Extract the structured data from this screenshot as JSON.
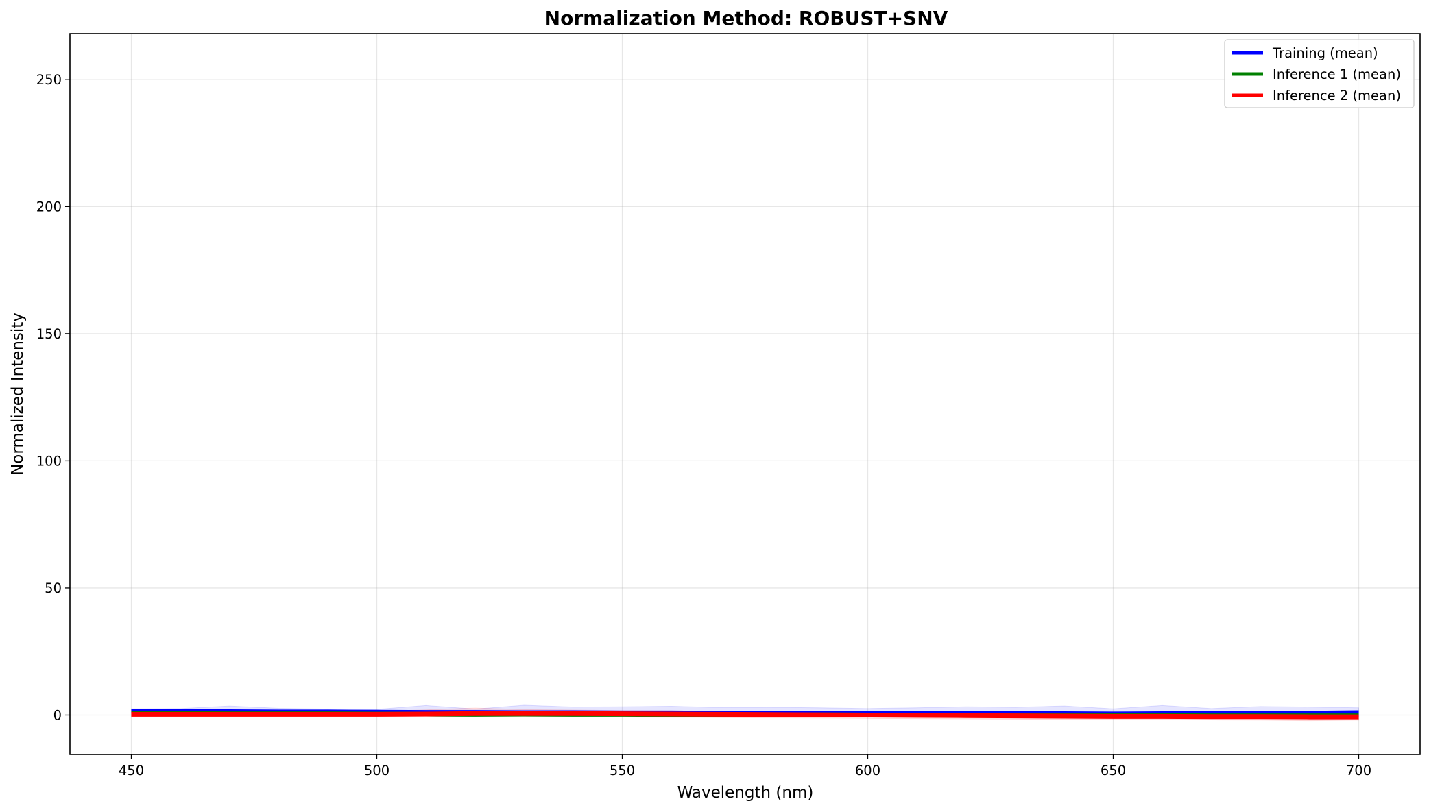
{
  "chart_data": {
    "type": "line",
    "title": "Normalization Method: ROBUST+SNV",
    "xlabel": "Wavelength (nm)",
    "ylabel": "Normalized Intensity",
    "xlim": [
      437.5,
      712.5
    ],
    "ylim": [
      -15.5,
      268
    ],
    "xticks": [
      450,
      500,
      550,
      600,
      650,
      700
    ],
    "yticks": [
      0,
      50,
      100,
      150,
      200,
      250
    ],
    "grid": true,
    "legend_position": "top-right",
    "x": [
      450,
      460,
      470,
      480,
      490,
      500,
      510,
      520,
      530,
      540,
      550,
      560,
      570,
      580,
      590,
      600,
      610,
      620,
      630,
      640,
      650,
      660,
      670,
      680,
      690,
      700
    ],
    "series": [
      {
        "name": "Training (mean)",
        "color": "#0000ff",
        "values": [
          1.6,
          1.7,
          1.6,
          1.5,
          1.5,
          1.4,
          1.3,
          1.3,
          1.2,
          1.2,
          1.1,
          1.1,
          1.0,
          1.0,
          0.9,
          0.9,
          0.9,
          0.8,
          0.8,
          0.8,
          0.7,
          0.8,
          0.8,
          0.9,
          1.0,
          1.2
        ],
        "band_upper": [
          2.5,
          2.6,
          3.6,
          2.7,
          2.4,
          2.3,
          3.8,
          2.4,
          3.9,
          3.2,
          3.3,
          3.5,
          3.0,
          3.1,
          2.9,
          2.6,
          2.9,
          3.3,
          3.1,
          3.6,
          2.5,
          3.8,
          2.6,
          3.4,
          3.2,
          2.9
        ],
        "band_lower": [
          0.9,
          1.0,
          0.8,
          0.6,
          0.7,
          0.5,
          0.3,
          0.2,
          0.1,
          0.0,
          -0.1,
          -0.2,
          -0.3,
          -0.4,
          -0.4,
          -0.5,
          -0.5,
          -0.6,
          -0.6,
          -0.7,
          -0.8,
          -0.8,
          -0.9,
          -0.9,
          -0.8,
          -0.7
        ]
      },
      {
        "name": "Inference 1 (mean)",
        "color": "#008000",
        "values": [
          0.6,
          0.6,
          0.5,
          0.5,
          0.5,
          0.4,
          0.4,
          0.3,
          0.4,
          0.3,
          0.3,
          0.2,
          0.2,
          0.1,
          0.1,
          0.0,
          0.0,
          -0.1,
          -0.1,
          -0.2,
          -0.2,
          -0.2,
          -0.3,
          -0.3,
          -0.3,
          -0.3
        ]
      },
      {
        "name": "Inference 2 (mean)",
        "color": "#ff0000",
        "values": [
          0.3,
          0.3,
          0.3,
          0.3,
          0.3,
          0.3,
          0.4,
          0.6,
          0.6,
          0.6,
          0.5,
          0.4,
          0.3,
          0.2,
          0.1,
          0.0,
          -0.1,
          -0.2,
          -0.3,
          -0.4,
          -0.5,
          -0.5,
          -0.6,
          -0.6,
          -0.7,
          -0.7
        ],
        "band_upper": [
          1.2,
          1.3,
          1.5,
          1.6,
          1.4,
          1.5,
          2.1,
          2.8,
          2.2,
          2.0,
          1.8,
          1.7,
          1.4,
          1.3,
          1.1,
          0.9,
          0.8,
          0.7,
          0.6,
          0.4,
          0.3,
          0.3,
          0.2,
          0.1,
          0.1,
          0.2
        ],
        "band_lower": [
          -0.6,
          -0.6,
          -0.7,
          -0.6,
          -0.7,
          -0.7,
          -0.6,
          -0.5,
          -0.6,
          -0.7,
          -0.8,
          -0.9,
          -1.0,
          -1.1,
          -1.2,
          -1.3,
          -1.4,
          -1.5,
          -1.6,
          -1.7,
          -1.8,
          -1.8,
          -1.9,
          -2.0,
          -2.2,
          -2.0
        ]
      }
    ]
  }
}
